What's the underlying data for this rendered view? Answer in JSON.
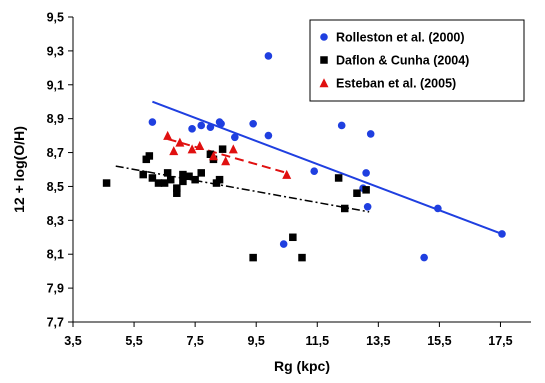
{
  "chart_data": {
    "type": "scatter",
    "xlabel": "Rg (kpc)",
    "ylabel": "12 + log(O/H)",
    "xlim": [
      3.5,
      18.5
    ],
    "ylim": [
      7.7,
      9.5
    ],
    "x_ticks": [
      "3,5",
      "5,5",
      "7,5",
      "9,5",
      "11,5",
      "13,5",
      "15,5",
      "17,5"
    ],
    "x_tick_values": [
      3.5,
      5.5,
      7.5,
      9.5,
      11.5,
      13.5,
      15.5,
      17.5
    ],
    "y_ticks": [
      "7,7",
      "7,9",
      "8,1",
      "8,3",
      "8,5",
      "8,7",
      "8,9",
      "9,1",
      "9,3",
      "9,5"
    ],
    "y_tick_values": [
      7.7,
      7.9,
      8.1,
      8.3,
      8.5,
      8.7,
      8.9,
      9.1,
      9.3,
      9.5
    ],
    "grid": false,
    "legend_position": "top-right",
    "series": [
      {
        "name": "Rolleston et al. (2000)",
        "marker": "circle",
        "color": "#1f3fe0",
        "points": [
          [
            6.1,
            8.88
          ],
          [
            7.4,
            8.84
          ],
          [
            7.7,
            8.86
          ],
          [
            8.0,
            8.85
          ],
          [
            8.3,
            8.88
          ],
          [
            8.35,
            8.87
          ],
          [
            8.8,
            8.79
          ],
          [
            9.4,
            8.87
          ],
          [
            9.9,
            8.8
          ],
          [
            9.9,
            9.27
          ],
          [
            10.4,
            8.16
          ],
          [
            11.4,
            8.59
          ],
          [
            12.3,
            8.86
          ],
          [
            13.0,
            8.49
          ],
          [
            13.1,
            8.58
          ],
          [
            13.15,
            8.38
          ],
          [
            13.25,
            8.81
          ],
          [
            15.0,
            8.08
          ],
          [
            15.45,
            8.37
          ],
          [
            17.55,
            8.22
          ]
        ],
        "fit": {
          "style": "solid",
          "from": [
            6.1,
            9.0
          ],
          "to": [
            17.55,
            8.22
          ]
        }
      },
      {
        "name": "Daflon & Cunha (2004)",
        "marker": "square",
        "color": "#000000",
        "points": [
          [
            4.6,
            8.52
          ],
          [
            5.8,
            8.57
          ],
          [
            5.9,
            8.66
          ],
          [
            6.0,
            8.68
          ],
          [
            6.1,
            8.55
          ],
          [
            6.3,
            8.52
          ],
          [
            6.5,
            8.52
          ],
          [
            6.6,
            8.58
          ],
          [
            6.7,
            8.54
          ],
          [
            6.9,
            8.46
          ],
          [
            6.9,
            8.49
          ],
          [
            7.1,
            8.57
          ],
          [
            7.1,
            8.53
          ],
          [
            7.3,
            8.56
          ],
          [
            7.5,
            8.54
          ],
          [
            7.7,
            8.58
          ],
          [
            8.0,
            8.69
          ],
          [
            8.1,
            8.66
          ],
          [
            8.2,
            8.52
          ],
          [
            8.3,
            8.54
          ],
          [
            8.4,
            8.72
          ],
          [
            9.4,
            8.08
          ],
          [
            10.7,
            8.2
          ],
          [
            11.0,
            8.08
          ],
          [
            12.2,
            8.55
          ],
          [
            12.4,
            8.37
          ],
          [
            12.8,
            8.46
          ],
          [
            13.1,
            8.48
          ]
        ],
        "fit": {
          "style": "dash-dot",
          "from": [
            4.9,
            8.62
          ],
          "to": [
            13.2,
            8.35
          ]
        }
      },
      {
        "name": "Esteban et al. (2005)",
        "marker": "triangle",
        "color": "#e01010",
        "points": [
          [
            6.6,
            8.8
          ],
          [
            6.8,
            8.71
          ],
          [
            7.0,
            8.76
          ],
          [
            7.4,
            8.72
          ],
          [
            7.65,
            8.74
          ],
          [
            8.1,
            8.68
          ],
          [
            8.5,
            8.65
          ],
          [
            8.75,
            8.72
          ],
          [
            10.5,
            8.57
          ]
        ],
        "fit": {
          "style": "dashed",
          "from": [
            6.6,
            8.78
          ],
          "to": [
            10.5,
            8.58
          ]
        }
      }
    ]
  }
}
